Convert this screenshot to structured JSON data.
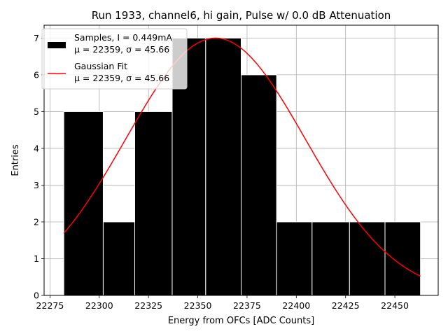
{
  "chart_data": {
    "type": "bar",
    "title": "Run 1933, channel6, hi gain, Pulse w/ 0.0 dB Attenuation",
    "xlabel": "Energy from OFCs [ADC Counts]",
    "ylabel": "Entries",
    "xlim": [
      22272,
      22472
    ],
    "ylim": [
      0,
      7.35
    ],
    "grid": true,
    "legend_placement": "top-left",
    "x_ticks": [
      22275,
      22300,
      22325,
      22350,
      22375,
      22400,
      22425,
      22450
    ],
    "y_ticks": [
      0,
      1,
      2,
      3,
      4,
      5,
      6,
      7
    ],
    "histogram": {
      "bin_edges": [
        22282,
        22302,
        22318,
        22337,
        22354,
        22372,
        22390,
        22408,
        22427,
        22445,
        22463
      ],
      "counts": [
        5,
        2,
        5,
        7,
        7,
        6,
        2,
        2,
        2,
        2
      ],
      "color": "#000000"
    },
    "fit": {
      "mu": 22359,
      "sigma": 45.66,
      "amplitude": 7,
      "x_range": [
        22282,
        22463
      ],
      "color": "#ff0000"
    },
    "legend": [
      {
        "label_line1": "Samples, I = 0.449mA",
        "label_line2": "μ = 22359, σ = 45.66",
        "swatch": "bar",
        "color": "#000000"
      },
      {
        "label_line1": "Gaussian Fit",
        "label_line2": "μ = 22359, σ = 45.66",
        "swatch": "line",
        "color": "#ff0000"
      }
    ]
  }
}
